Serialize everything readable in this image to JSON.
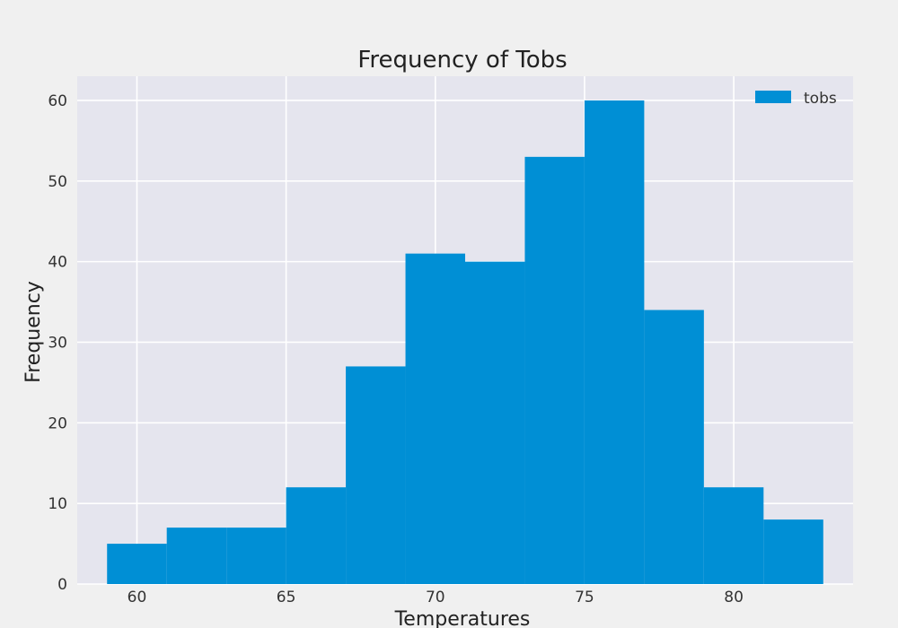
{
  "chart_data": {
    "type": "bar",
    "title": "Frequency of Tobs",
    "xlabel": "Temperatures",
    "ylabel": "Frequency",
    "legend": {
      "label": "tobs",
      "position": "top-right"
    },
    "bar_color": "#008fd5",
    "background_color": "#e5e5ee",
    "figure_color": "#f0f0f0",
    "grid": true,
    "xlim": [
      58,
      84
    ],
    "ylim": [
      0,
      63
    ],
    "x_ticks": [
      60,
      65,
      70,
      75,
      80
    ],
    "y_ticks": [
      0,
      10,
      20,
      30,
      40,
      50,
      60
    ],
    "bins": [
      {
        "x0": 59,
        "x1": 61,
        "value": 5
      },
      {
        "x0": 61,
        "x1": 63,
        "value": 7
      },
      {
        "x0": 63,
        "x1": 65,
        "value": 7
      },
      {
        "x0": 65,
        "x1": 67,
        "value": 12
      },
      {
        "x0": 67,
        "x1": 69,
        "value": 27
      },
      {
        "x0": 69,
        "x1": 71,
        "value": 41
      },
      {
        "x0": 71,
        "x1": 73,
        "value": 40
      },
      {
        "x0": 73,
        "x1": 75,
        "value": 53
      },
      {
        "x0": 75,
        "x1": 77,
        "value": 60
      },
      {
        "x0": 77,
        "x1": 79,
        "value": 34
      },
      {
        "x0": 79,
        "x1": 81,
        "value": 12
      },
      {
        "x0": 81,
        "x1": 83,
        "value": 8
      }
    ]
  }
}
